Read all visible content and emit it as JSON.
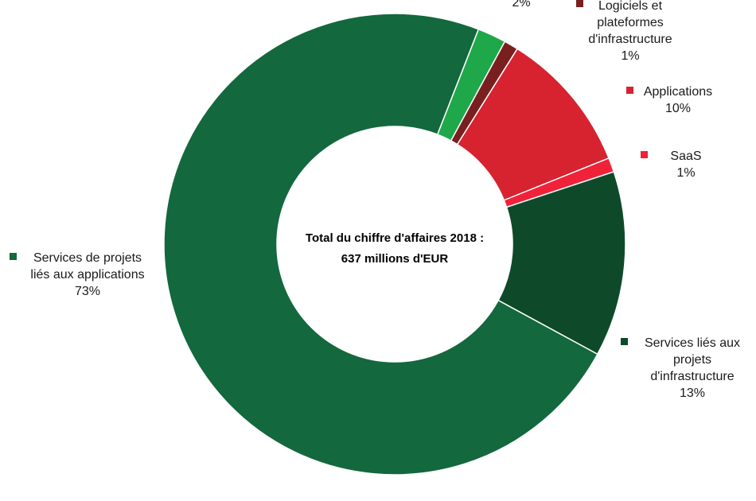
{
  "chart_data": {
    "type": "pie",
    "donut": true,
    "center_text": [
      "Total du chiffre d'affaires 2018 :",
      "637 millions d'EUR"
    ],
    "slices": [
      {
        "label": [
          "Logiciels et",
          "plateformes",
          "d'infrastructure"
        ],
        "value": 1,
        "value_label": "1%",
        "color": "#7a1f1f"
      },
      {
        "label": [
          "Applications"
        ],
        "value": 10,
        "value_label": "10%",
        "color": "#d6232f"
      },
      {
        "label": [
          "SaaS"
        ],
        "value": 1,
        "value_label": "1%",
        "color": "#f0223a"
      },
      {
        "label": [
          "Services liés aux",
          "projets",
          "d'infrastructure"
        ],
        "value": 13,
        "value_label": "13%",
        "color": "#0e4a2a"
      },
      {
        "label": [
          "Services de projets",
          "liés aux applications"
        ],
        "value": 73,
        "value_label": "73%",
        "color": "#13683d"
      },
      {
        "label": [],
        "value": 2,
        "value_label": "2%",
        "color": "#1fa84a"
      }
    ],
    "start_angle_deg": 28.5,
    "legend_placement": "around"
  }
}
